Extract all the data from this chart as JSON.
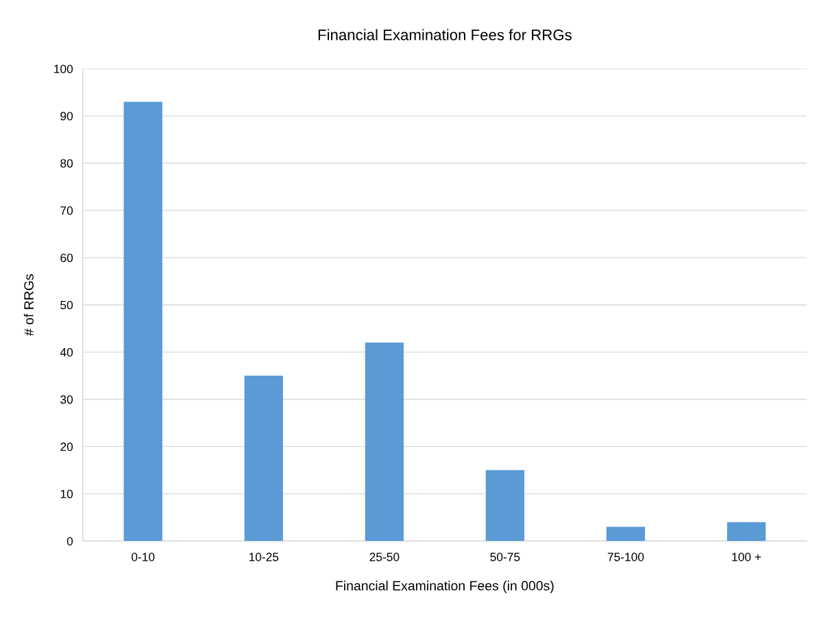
{
  "chart_data": {
    "type": "bar",
    "title": "Financial Examination Fees for RRGs",
    "xlabel": "Financial Examination Fees (in 000s)",
    "ylabel": "# of RRGs",
    "categories": [
      "0-10",
      "10-25",
      "25-50",
      "50-75",
      "75-100",
      "100 +"
    ],
    "values": [
      93,
      35,
      42,
      15,
      3,
      4
    ],
    "color": "#5b9bd5",
    "ylim": [
      0,
      100
    ],
    "yticks": [
      0,
      10,
      20,
      30,
      40,
      50,
      60,
      70,
      80,
      90,
      100
    ],
    "grid": "y",
    "legend": false
  }
}
